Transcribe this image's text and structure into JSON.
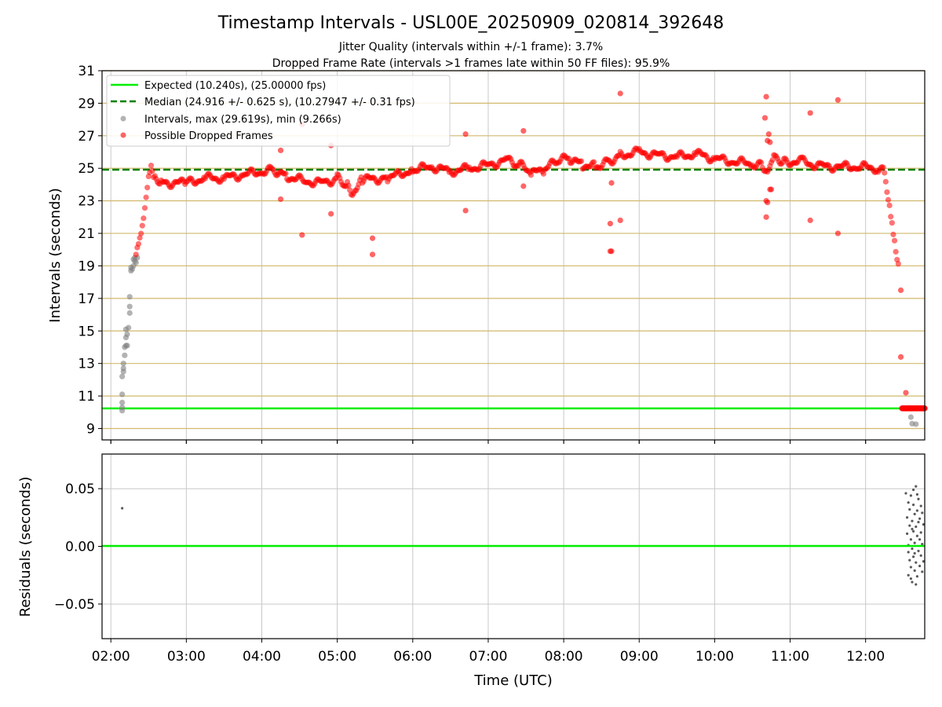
{
  "figure": {
    "title": "Timestamp Intervals - USL00E_20250909_020814_392648",
    "subtitle_1": "Jitter Quality (intervals within +/-1 frame): 3.7%",
    "subtitle_2": "Dropped Frame Rate (intervals >1 frames late within 50 FF files): 95.9%"
  },
  "colors": {
    "expected": "#00ee00",
    "median": "#008000",
    "dropped": "#ff0000",
    "interval": "#808080",
    "hgrid": "#d2b96e",
    "vgrid": "#c8c8c8",
    "residual": "#5a5a5a"
  },
  "chart_data": [
    {
      "type": "scatter",
      "title": "",
      "xlabel": "",
      "ylabel": "Intervals (seconds)",
      "xlim": [
        "01:53",
        "12:47"
      ],
      "ylim": [
        8.3,
        31
      ],
      "yticks": [
        "9",
        "11",
        "13",
        "15",
        "17",
        "19",
        "21",
        "23",
        "25",
        "27",
        "29",
        "31"
      ],
      "xticks": [
        "02:00",
        "03:00",
        "04:00",
        "05:00",
        "06:00",
        "07:00",
        "08:00",
        "09:00",
        "10:00",
        "11:00",
        "12:00"
      ],
      "grid": "on",
      "legend_position": "top-left",
      "legend": [
        "Expected (10.240s), (25.00000 fps)",
        "Median (24.916 +/- 0.625 s), (10.27947 +/- 0.31 fps)",
        "Intervals, max (29.619s), min (9.266s)",
        "Possible Dropped Frames"
      ],
      "expected_interval": 10.24,
      "median_interval": 24.916,
      "series": [
        {
          "name": "Intervals, max (29.619s), min (9.266s)",
          "points": [
            [
              "02:09",
              10.1
            ],
            [
              "02:09",
              10.3
            ],
            [
              "02:09",
              10.6
            ],
            [
              "02:09",
              11.1
            ],
            [
              "02:09",
              12.2
            ],
            [
              "02:10",
              12.5
            ],
            [
              "02:10",
              12.7
            ],
            [
              "02:10",
              13.0
            ],
            [
              "02:11",
              13.5
            ],
            [
              "02:11",
              14.0
            ],
            [
              "02:12",
              14.1
            ],
            [
              "02:12",
              14.6
            ],
            [
              "02:12",
              15.1
            ],
            [
              "02:13",
              14.8
            ],
            [
              "02:13",
              14.1
            ],
            [
              "02:14",
              15.2
            ],
            [
              "02:15",
              16.1
            ],
            [
              "02:15",
              16.5
            ],
            [
              "02:15",
              17.1
            ],
            [
              "02:16",
              18.7
            ],
            [
              "02:16",
              18.9
            ],
            [
              "02:17",
              18.8
            ],
            [
              "02:18",
              19.0
            ],
            [
              "02:18",
              19.4
            ],
            [
              "02:19",
              19.3
            ],
            [
              "02:19",
              19.5
            ],
            [
              "02:20",
              19.2
            ],
            [
              "02:21",
              19.5
            ],
            [
              "12:36",
              9.7
            ],
            [
              "12:37",
              9.3
            ],
            [
              "12:40",
              9.27
            ]
          ]
        },
        {
          "name": "Possible Dropped Frames",
          "trend": [
            [
              "02:20",
              19.6
            ],
            [
              "02:22",
              20.4
            ],
            [
              "02:24",
              21.2
            ],
            [
              "02:26",
              22.2
            ],
            [
              "02:28",
              23.4
            ],
            [
              "02:30",
              24.5
            ],
            [
              "02:32",
              25.0
            ],
            [
              "02:35",
              24.3
            ],
            [
              "02:40",
              24.1
            ],
            [
              "03:00",
              24.1
            ],
            [
              "03:15",
              24.4
            ],
            [
              "03:30",
              24.4
            ],
            [
              "03:45",
              24.6
            ],
            [
              "04:00",
              24.8
            ],
            [
              "04:10",
              24.9
            ],
            [
              "04:20",
              24.5
            ],
            [
              "04:35",
              24.2
            ],
            [
              "04:50",
              24.1
            ],
            [
              "05:00",
              24.4
            ],
            [
              "05:08",
              23.9
            ],
            [
              "05:12",
              23.2
            ],
            [
              "05:15",
              23.7
            ],
            [
              "05:20",
              24.3
            ],
            [
              "05:40",
              24.4
            ],
            [
              "06:00",
              24.9
            ],
            [
              "06:15",
              25.1
            ],
            [
              "06:30",
              24.8
            ],
            [
              "06:45",
              25.0
            ],
            [
              "07:00",
              25.2
            ],
            [
              "07:15",
              25.5
            ],
            [
              "07:25",
              25.2
            ],
            [
              "07:35",
              24.7
            ],
            [
              "07:45",
              24.9
            ],
            [
              "07:55",
              25.5
            ],
            [
              "08:05",
              25.6
            ],
            [
              "08:15",
              25.2
            ],
            [
              "08:25",
              25.1
            ],
            [
              "08:35",
              25.4
            ],
            [
              "08:45",
              25.8
            ],
            [
              "09:00",
              26.0
            ],
            [
              "09:15",
              25.8
            ],
            [
              "09:30",
              25.7
            ],
            [
              "09:45",
              25.9
            ],
            [
              "10:00",
              25.6
            ],
            [
              "10:15",
              25.4
            ],
            [
              "10:30",
              25.3
            ],
            [
              "10:38",
              25.2
            ],
            [
              "10:42",
              24.9
            ],
            [
              "10:47",
              25.8
            ],
            [
              "10:55",
              25.4
            ],
            [
              "11:10",
              25.4
            ],
            [
              "11:25",
              25.1
            ],
            [
              "11:40",
              25.1
            ],
            [
              "11:55",
              25.1
            ],
            [
              "12:10",
              25.0
            ],
            [
              "12:15",
              24.9
            ],
            [
              "12:17",
              23.6
            ],
            [
              "12:19",
              22.7
            ],
            [
              "12:21",
              21.6
            ],
            [
              "12:23",
              20.5
            ],
            [
              "12:25",
              19.3
            ],
            [
              "12:27",
              18.7
            ]
          ],
          "points": [
            [
              "04:15",
              26.1
            ],
            [
              "04:15",
              23.1
            ],
            [
              "04:32",
              20.9
            ],
            [
              "04:32",
              27.7
            ],
            [
              "04:55",
              26.4
            ],
            [
              "04:55",
              22.2
            ],
            [
              "05:28",
              20.7
            ],
            [
              "05:28",
              19.7
            ],
            [
              "06:42",
              27.1
            ],
            [
              "06:42",
              22.4
            ],
            [
              "07:28",
              27.3
            ],
            [
              "07:28",
              23.9
            ],
            [
              "08:37",
              19.9
            ],
            [
              "08:38",
              19.9
            ],
            [
              "08:37",
              21.6
            ],
            [
              "08:38",
              24.1
            ],
            [
              "08:45",
              21.8
            ],
            [
              "08:45",
              29.6
            ],
            [
              "10:40",
              28.1
            ],
            [
              "10:41",
              29.4
            ],
            [
              "10:41",
              22.0
            ],
            [
              "10:41",
              23.0
            ],
            [
              "10:42",
              22.9
            ],
            [
              "10:42",
              26.7
            ],
            [
              "10:43",
              27.1
            ],
            [
              "10:44",
              23.7
            ],
            [
              "10:44",
              26.6
            ],
            [
              "10:45",
              23.7
            ],
            [
              "11:16",
              28.4
            ],
            [
              "11:16",
              21.8
            ],
            [
              "11:38",
              29.2
            ],
            [
              "11:38",
              21.0
            ],
            [
              "12:28",
              17.5
            ],
            [
              "12:28",
              13.4
            ],
            [
              "12:32",
              11.2
            ]
          ],
          "cluster": {
            "from": "12:29",
            "to": "12:47",
            "y": 10.24
          }
        }
      ]
    },
    {
      "type": "scatter",
      "title": "",
      "xlabel": "Time (UTC)",
      "ylabel": "Residuals (seconds)",
      "xlim": [
        "01:53",
        "12:47"
      ],
      "ylim": [
        -0.08,
        0.08
      ],
      "yticks": [
        "0.05",
        "0.00",
        "−0.05"
      ],
      "xticks": [
        "02:00",
        "03:00",
        "04:00",
        "05:00",
        "06:00",
        "07:00",
        "08:00",
        "09:00",
        "10:00",
        "11:00",
        "12:00"
      ],
      "grid": "on",
      "series": [
        {
          "points": [
            [
              "02:09",
              0.033
            ],
            [
              "12:32",
              0.046
            ],
            [
              "12:33",
              0.025
            ],
            [
              "12:33",
              0.011
            ],
            [
              "12:34",
              -0.005
            ],
            [
              "12:34",
              -0.025
            ],
            [
              "12:34",
              0.001
            ],
            [
              "12:35",
              0.018
            ],
            [
              "12:35",
              0.032
            ],
            [
              "12:35",
              -0.012
            ],
            [
              "12:36",
              0.044
            ],
            [
              "12:36",
              0.006
            ],
            [
              "12:36",
              -0.018
            ],
            [
              "12:37",
              0.022
            ],
            [
              "12:37",
              -0.002
            ],
            [
              "12:37",
              -0.031
            ],
            [
              "12:38",
              0.036
            ],
            [
              "12:38",
              0.013
            ],
            [
              "12:38",
              -0.009
            ],
            [
              "12:39",
              0.028
            ],
            [
              "12:39",
              0.003
            ],
            [
              "12:39",
              -0.021
            ],
            [
              "12:40",
              0.052
            ],
            [
              "12:40",
              0.017
            ],
            [
              "12:40",
              -0.014
            ],
            [
              "12:41",
              0.031
            ],
            [
              "12:41",
              0.009
            ],
            [
              "12:41",
              -0.026
            ],
            [
              "12:42",
              0.041
            ],
            [
              "12:42",
              -0.004
            ],
            [
              "12:43",
              0.024
            ],
            [
              "12:43",
              -0.017
            ],
            [
              "12:44",
              0.012
            ],
            [
              "12:44",
              -0.008
            ],
            [
              "12:45",
              0.029
            ],
            [
              "12:45",
              0.002
            ],
            [
              "12:46",
              -0.013
            ],
            [
              "12:46",
              0.019
            ],
            [
              "12:34",
              0.038
            ],
            [
              "12:36",
              -0.028
            ],
            [
              "12:38",
              0.049
            ],
            [
              "12:40",
              -0.033
            ],
            [
              "12:42",
              0.021
            ],
            [
              "12:44",
              0.035
            ],
            [
              "12:37",
              0.015
            ],
            [
              "12:39",
              -0.006
            ],
            [
              "12:41",
              0.045
            ],
            [
              "12:43",
              0.006
            ],
            [
              "12:45",
              -0.022
            ]
          ]
        }
      ]
    }
  ]
}
